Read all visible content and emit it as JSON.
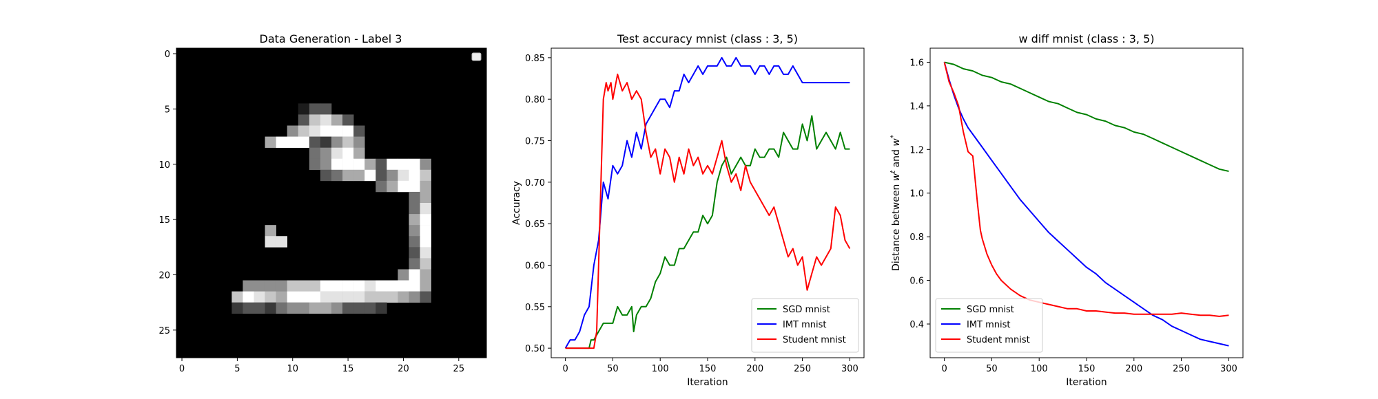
{
  "chart_data": [
    {
      "type": "heatmap",
      "title": "Data Generation - Label 3",
      "xlabel": "",
      "ylabel": "",
      "xlim": [
        -0.5,
        27.5
      ],
      "ylim": [
        27.5,
        -0.5
      ],
      "xticks": [
        0,
        5,
        10,
        15,
        20,
        25
      ],
      "yticks": [
        0,
        5,
        10,
        15,
        20,
        25
      ],
      "colormap": "gray",
      "legend": "empty box, top-right",
      "pixels": [
        "0000000000000000000000000000",
        "0000000000000000000000000000",
        "0000000000000000000000000000",
        "0000000000000000000000000000",
        "0000000000000000000000000000",
        "0000000000013300000000000000",
        "0000000000037863000000000000",
        "0000000000578999300000000000",
        "0000000069993257500000000000",
        "0000000000004589600000000000",
        "0000000000004599963999500000",
        "0000000000000346693589700000",
        "0000000000000000004699600000",
        "0000000000000000000004600000",
        "0000000000000000000004800000",
        "0000000000000000000006900000",
        "0000000060000000000005900000",
        "0000000088000000000004900000",
        "0000000000000000000003800000",
        "0000000000000000000004700000",
        "0000000000000000000059600000",
        "0000005555777999989999600000",
        "0000079876999888877765300000",
        "0000023324556653332000000000",
        "0000000000000000000000000000",
        "0000000000000000000000000000",
        "0000000000000000000000000000",
        "0000000000000000000000000000"
      ]
    },
    {
      "type": "line",
      "title": "Test accuracy mnist (class : 3, 5)",
      "xlabel": "Iteration",
      "ylabel": "Accuracy",
      "xlim": [
        -15,
        315
      ],
      "ylim": [
        0.4885,
        0.8615
      ],
      "xticks": [
        0,
        50,
        100,
        150,
        200,
        250,
        300
      ],
      "yticks": [
        0.5,
        0.55,
        0.6,
        0.65,
        0.7,
        0.75,
        0.8,
        0.85
      ],
      "legend": "lower right",
      "series": [
        {
          "name": "SGD mnist",
          "color": "#008000",
          "x": [
            0,
            25,
            27,
            30,
            35,
            40,
            45,
            50,
            55,
            60,
            65,
            70,
            72,
            75,
            80,
            85,
            90,
            95,
            100,
            105,
            110,
            115,
            120,
            125,
            130,
            135,
            140,
            145,
            150,
            155,
            160,
            165,
            170,
            175,
            180,
            185,
            190,
            195,
            200,
            205,
            210,
            215,
            220,
            225,
            230,
            235,
            240,
            245,
            250,
            255,
            260,
            265,
            270,
            275,
            280,
            285,
            290,
            295,
            300
          ],
          "y": [
            0.5,
            0.5,
            0.51,
            0.51,
            0.52,
            0.53,
            0.53,
            0.53,
            0.55,
            0.54,
            0.54,
            0.55,
            0.52,
            0.54,
            0.55,
            0.55,
            0.56,
            0.58,
            0.59,
            0.61,
            0.6,
            0.6,
            0.62,
            0.62,
            0.63,
            0.64,
            0.64,
            0.66,
            0.65,
            0.66,
            0.7,
            0.72,
            0.73,
            0.71,
            0.72,
            0.73,
            0.72,
            0.72,
            0.74,
            0.73,
            0.73,
            0.74,
            0.74,
            0.73,
            0.76,
            0.75,
            0.74,
            0.74,
            0.77,
            0.75,
            0.78,
            0.74,
            0.75,
            0.76,
            0.75,
            0.74,
            0.76,
            0.74,
            0.74
          ]
        },
        {
          "name": "IMT mnist",
          "color": "#0000ff",
          "x": [
            0,
            5,
            10,
            15,
            20,
            25,
            30,
            35,
            40,
            45,
            50,
            55,
            60,
            65,
            70,
            75,
            80,
            85,
            90,
            95,
            100,
            105,
            110,
            115,
            120,
            125,
            130,
            135,
            140,
            145,
            150,
            155,
            160,
            165,
            170,
            175,
            180,
            185,
            190,
            195,
            200,
            205,
            210,
            215,
            220,
            225,
            230,
            235,
            240,
            245,
            250,
            255,
            260,
            265,
            270,
            275,
            280,
            285,
            290,
            295,
            300
          ],
          "y": [
            0.5,
            0.51,
            0.51,
            0.52,
            0.54,
            0.55,
            0.6,
            0.63,
            0.7,
            0.68,
            0.72,
            0.71,
            0.72,
            0.75,
            0.73,
            0.76,
            0.74,
            0.77,
            0.78,
            0.79,
            0.8,
            0.8,
            0.79,
            0.81,
            0.81,
            0.83,
            0.82,
            0.83,
            0.84,
            0.83,
            0.84,
            0.84,
            0.84,
            0.85,
            0.84,
            0.84,
            0.85,
            0.84,
            0.84,
            0.84,
            0.83,
            0.84,
            0.84,
            0.83,
            0.84,
            0.84,
            0.83,
            0.83,
            0.84,
            0.83,
            0.82,
            0.82,
            0.82,
            0.82,
            0.82,
            0.82,
            0.82,
            0.82,
            0.82,
            0.82,
            0.82
          ]
        },
        {
          "name": "Student mnist",
          "color": "#ff0000",
          "x": [
            0,
            30,
            33,
            35,
            38,
            40,
            43,
            45,
            48,
            50,
            55,
            60,
            65,
            70,
            75,
            80,
            85,
            90,
            95,
            100,
            105,
            110,
            115,
            120,
            125,
            130,
            135,
            140,
            145,
            150,
            155,
            160,
            165,
            170,
            175,
            180,
            185,
            190,
            195,
            200,
            205,
            210,
            215,
            220,
            225,
            230,
            235,
            240,
            245,
            250,
            255,
            260,
            265,
            270,
            275,
            280,
            285,
            290,
            295,
            300
          ],
          "y": [
            0.5,
            0.5,
            0.52,
            0.6,
            0.72,
            0.8,
            0.82,
            0.81,
            0.82,
            0.8,
            0.83,
            0.81,
            0.82,
            0.8,
            0.81,
            0.8,
            0.76,
            0.73,
            0.74,
            0.71,
            0.74,
            0.73,
            0.7,
            0.73,
            0.71,
            0.74,
            0.72,
            0.73,
            0.71,
            0.72,
            0.71,
            0.73,
            0.75,
            0.72,
            0.7,
            0.71,
            0.69,
            0.72,
            0.7,
            0.69,
            0.68,
            0.67,
            0.66,
            0.67,
            0.65,
            0.63,
            0.61,
            0.62,
            0.6,
            0.61,
            0.57,
            0.59,
            0.61,
            0.6,
            0.61,
            0.62,
            0.67,
            0.66,
            0.63,
            0.62
          ]
        }
      ]
    },
    {
      "type": "line",
      "title": "w diff mnist (class : 3, 5)",
      "xlabel": "Iteration",
      "ylabel": "Distance between w^t and w^*",
      "ylabel_parts": [
        "Distance between ",
        "w",
        "t",
        " and ",
        "w",
        "*"
      ],
      "xlim": [
        -15,
        315
      ],
      "ylim": [
        0.2455,
        1.6645
      ],
      "xticks": [
        0,
        50,
        100,
        150,
        200,
        250,
        300
      ],
      "yticks": [
        0.4,
        0.6,
        0.8,
        1.0,
        1.2,
        1.4,
        1.6
      ],
      "legend": "lower left",
      "series": [
        {
          "name": "SGD mnist",
          "color": "#008000",
          "x": [
            0,
            10,
            20,
            30,
            40,
            50,
            60,
            70,
            80,
            90,
            100,
            110,
            120,
            130,
            140,
            150,
            160,
            170,
            180,
            190,
            200,
            210,
            220,
            230,
            240,
            250,
            260,
            270,
            280,
            290,
            300
          ],
          "y": [
            1.6,
            1.59,
            1.57,
            1.56,
            1.54,
            1.53,
            1.51,
            1.5,
            1.48,
            1.46,
            1.44,
            1.42,
            1.41,
            1.39,
            1.37,
            1.36,
            1.34,
            1.33,
            1.31,
            1.3,
            1.28,
            1.27,
            1.25,
            1.23,
            1.21,
            1.19,
            1.17,
            1.15,
            1.13,
            1.11,
            1.1
          ]
        },
        {
          "name": "IMT mnist",
          "color": "#0000ff",
          "x": [
            0,
            5,
            10,
            15,
            20,
            25,
            30,
            40,
            50,
            60,
            70,
            80,
            90,
            100,
            110,
            120,
            130,
            140,
            150,
            160,
            170,
            180,
            190,
            200,
            210,
            220,
            230,
            240,
            250,
            260,
            270,
            280,
            290,
            300
          ],
          "y": [
            1.6,
            1.52,
            1.45,
            1.39,
            1.34,
            1.3,
            1.27,
            1.21,
            1.15,
            1.09,
            1.03,
            0.97,
            0.92,
            0.87,
            0.82,
            0.78,
            0.74,
            0.7,
            0.66,
            0.63,
            0.59,
            0.56,
            0.53,
            0.5,
            0.47,
            0.44,
            0.42,
            0.39,
            0.37,
            0.35,
            0.33,
            0.32,
            0.31,
            0.3
          ]
        },
        {
          "name": "Student mnist",
          "color": "#ff0000",
          "x": [
            0,
            5,
            10,
            15,
            20,
            25,
            30,
            33,
            35,
            38,
            40,
            45,
            50,
            55,
            60,
            70,
            80,
            90,
            100,
            110,
            120,
            130,
            140,
            150,
            160,
            170,
            180,
            190,
            200,
            210,
            220,
            230,
            240,
            250,
            260,
            270,
            280,
            290,
            300
          ],
          "y": [
            1.6,
            1.51,
            1.46,
            1.4,
            1.28,
            1.19,
            1.17,
            1.04,
            0.95,
            0.83,
            0.79,
            0.72,
            0.67,
            0.63,
            0.6,
            0.56,
            0.53,
            0.51,
            0.5,
            0.49,
            0.48,
            0.47,
            0.47,
            0.46,
            0.46,
            0.455,
            0.45,
            0.45,
            0.445,
            0.445,
            0.445,
            0.445,
            0.445,
            0.45,
            0.445,
            0.44,
            0.44,
            0.435,
            0.44
          ]
        }
      ]
    }
  ]
}
